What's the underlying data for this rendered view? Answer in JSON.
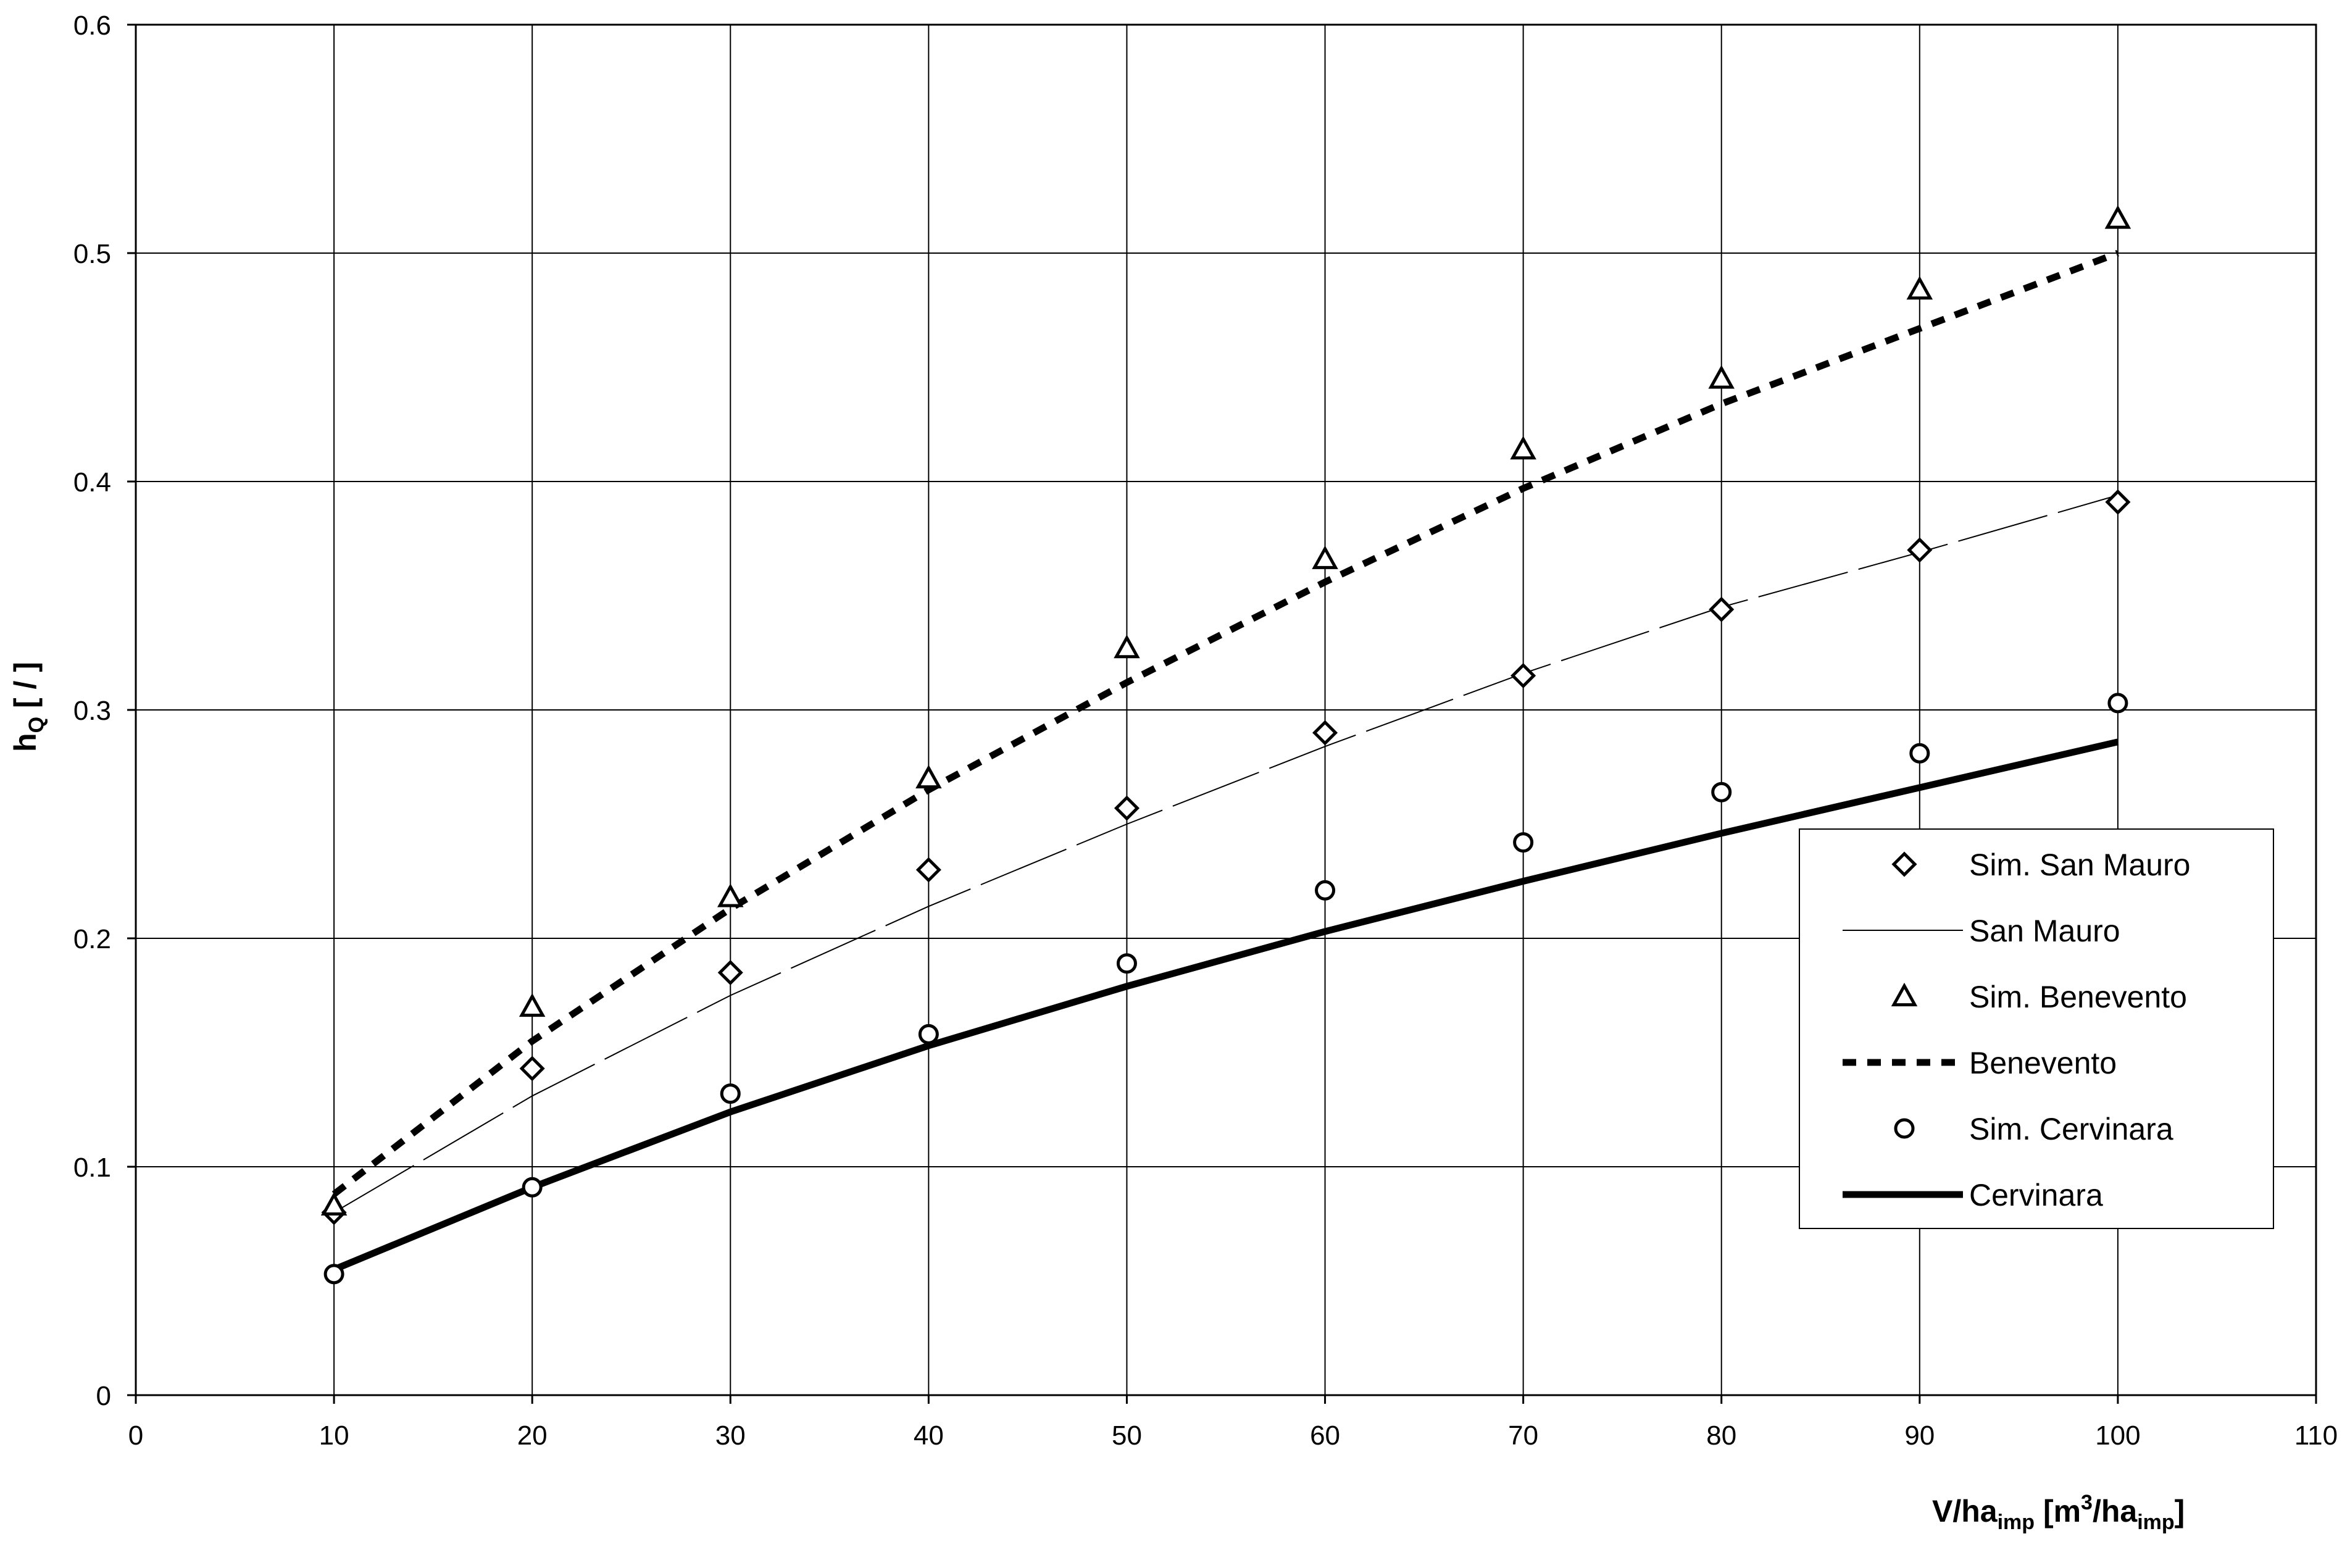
{
  "chart_data": {
    "type": "scatter",
    "xlabel": {
      "base": "V/ha",
      "sub1": "imp",
      "mid": " [m",
      "sup": "3",
      "slash": "/ha",
      "sub2": "imp",
      "end": "]"
    },
    "ylabel": {
      "base": "h",
      "sub": "Q",
      "unit": "  [ / ]"
    },
    "xlim": [
      0,
      110
    ],
    "ylim": [
      0,
      0.6
    ],
    "x_ticks": [
      0,
      10,
      20,
      30,
      40,
      50,
      60,
      70,
      80,
      90,
      100,
      110
    ],
    "y_ticks": [
      0,
      0.1,
      0.2,
      0.3,
      0.4,
      0.5,
      0.6
    ],
    "x_tick_labels": [
      "0",
      "10",
      "20",
      "30",
      "40",
      "50",
      "60",
      "70",
      "80",
      "90",
      "100",
      "110"
    ],
    "y_tick_labels": [
      "0",
      "0.1",
      "0.2",
      "0.3",
      "0.4",
      "0.5",
      "0.6"
    ],
    "grid": true,
    "legend_position": "right-center",
    "series": [
      {
        "name": "Sim. San Mauro",
        "kind": "markers",
        "marker": "diamond",
        "x": [
          10,
          20,
          30,
          40,
          50,
          60,
          70,
          80,
          90,
          100
        ],
        "y": [
          0.08,
          0.143,
          0.185,
          0.23,
          0.257,
          0.29,
          0.315,
          0.344,
          0.37,
          0.391
        ]
      },
      {
        "name": "San Mauro",
        "kind": "line",
        "style": "long-dash-thin",
        "x": [
          10,
          20,
          30,
          40,
          50,
          60,
          70,
          80,
          90,
          100
        ],
        "y": [
          0.08,
          0.131,
          0.175,
          0.214,
          0.25,
          0.284,
          0.316,
          0.345,
          0.369,
          0.394
        ]
      },
      {
        "name": "Sim. Benevento",
        "kind": "markers",
        "marker": "triangle",
        "x": [
          10,
          20,
          30,
          40,
          50,
          60,
          70,
          80,
          90,
          100
        ],
        "y": [
          0.083,
          0.17,
          0.218,
          0.27,
          0.327,
          0.366,
          0.414,
          0.445,
          0.484,
          0.515
        ]
      },
      {
        "name": "Benevento",
        "kind": "line",
        "style": "dotted-thick",
        "x": [
          10,
          20,
          30,
          40,
          50,
          60,
          70,
          80,
          90,
          100
        ],
        "y": [
          0.088,
          0.155,
          0.213,
          0.265,
          0.312,
          0.356,
          0.397,
          0.434,
          0.467,
          0.5
        ]
      },
      {
        "name": "Sim. Cervinara",
        "kind": "markers",
        "marker": "circle",
        "x": [
          10,
          20,
          30,
          40,
          50,
          60,
          70,
          80,
          90,
          100
        ],
        "y": [
          0.053,
          0.091,
          0.132,
          0.158,
          0.189,
          0.221,
          0.242,
          0.264,
          0.281,
          0.303
        ]
      },
      {
        "name": "Cervinara",
        "kind": "line",
        "style": "solid-thick",
        "x": [
          10,
          20,
          30,
          40,
          50,
          60,
          70,
          80,
          90,
          100
        ],
        "y": [
          0.055,
          0.091,
          0.124,
          0.153,
          0.179,
          0.203,
          0.225,
          0.246,
          0.266,
          0.286
        ]
      }
    ]
  }
}
